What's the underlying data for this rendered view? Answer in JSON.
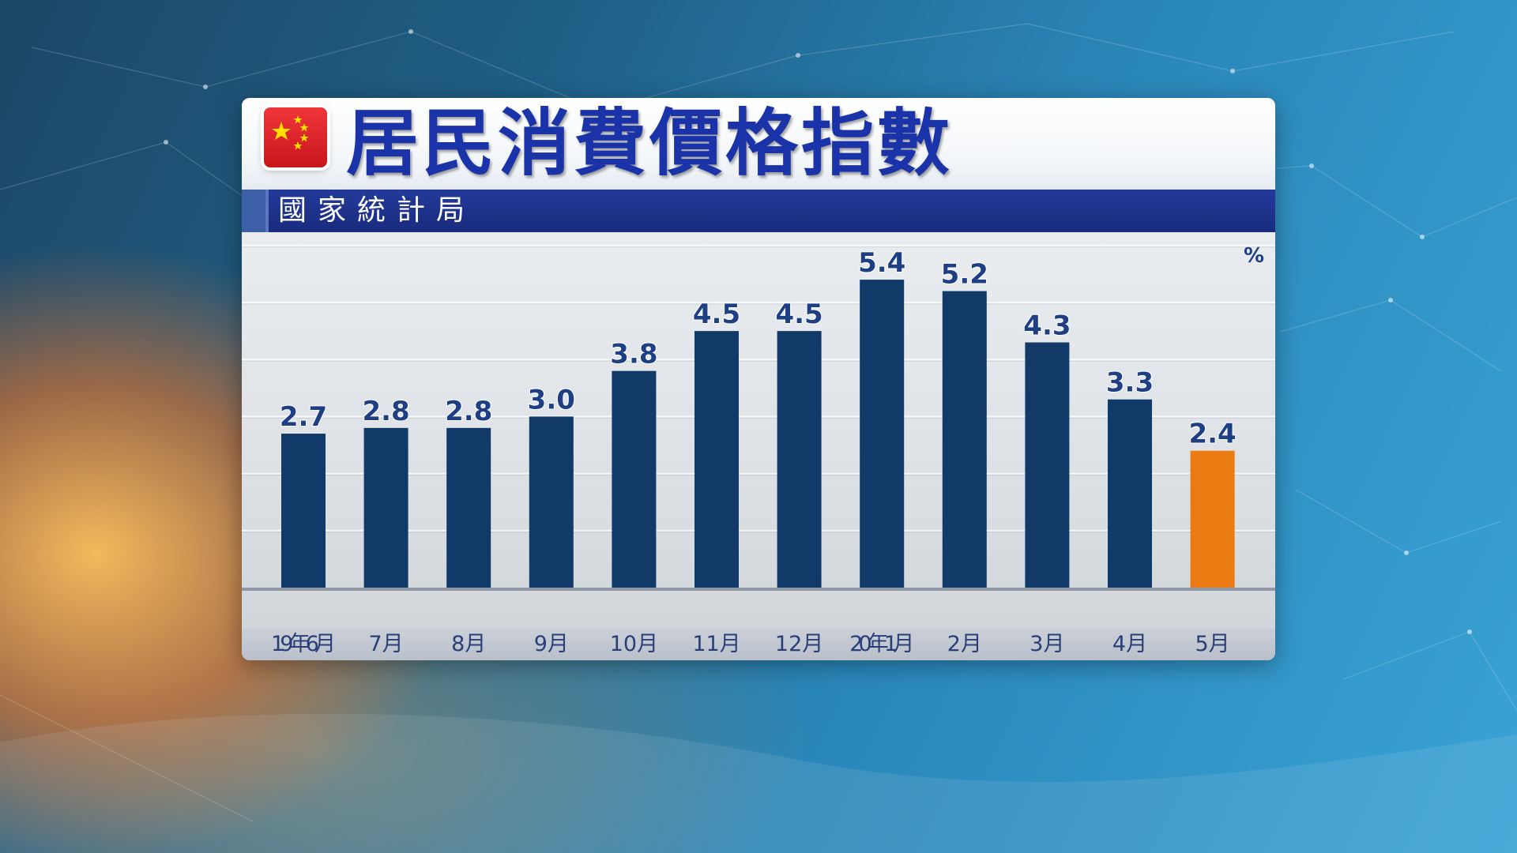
{
  "header": {
    "title": "居民消費價格指數",
    "source": "國家統計局",
    "flag_icon": "china-flag-icon"
  },
  "colors": {
    "bar": "#123a68",
    "highlight_bar": "#ec7a12",
    "label": "#1f3f85",
    "title": "#1a33a8",
    "source_bar": "#1a2b7e"
  },
  "chart_data": {
    "type": "bar",
    "title": "居民消費價格指數",
    "unit": "%",
    "categories": [
      "19年6月",
      "7月",
      "8月",
      "9月",
      "10月",
      "11月",
      "12月",
      "20年1月",
      "2月",
      "3月",
      "4月",
      "5月"
    ],
    "series": [
      {
        "values": [
          2.7,
          2.8,
          2.8,
          3.0,
          3.8,
          4.5,
          4.5,
          5.4,
          5.2,
          4.3,
          3.3,
          2.4
        ]
      }
    ],
    "value_labels": [
      "2.7",
      "2.8",
      "2.8",
      "3.0",
      "3.8",
      "4.5",
      "4.5",
      "5.4",
      "5.2",
      "4.3",
      "3.3",
      "2.4"
    ],
    "highlight_index": 11,
    "ylim": [
      0,
      6
    ],
    "grid": true,
    "legend": "none"
  }
}
